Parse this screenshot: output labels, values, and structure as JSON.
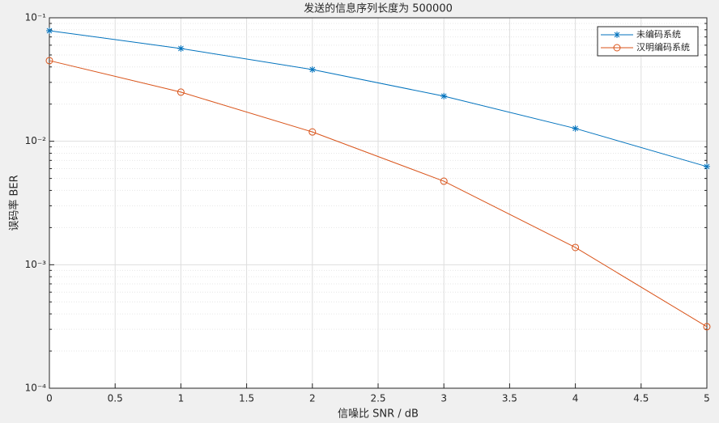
{
  "chart_data": {
    "type": "line",
    "title": "发送的信息序列长度为 500000",
    "x_label": "信噪比 SNR / dB",
    "y_label": "误码率 BER",
    "x": [
      0,
      1,
      2,
      3,
      4,
      5
    ],
    "series": [
      {
        "name": "未编码系统",
        "color": "#0072bd",
        "marker": "star",
        "values": [
          0.0786,
          0.0564,
          0.0381,
          0.0232,
          0.0127,
          0.00624
        ]
      },
      {
        "name": "汉明编码系统",
        "color": "#d95319",
        "marker": "circle",
        "values": [
          0.045,
          0.025,
          0.0119,
          0.00475,
          0.00138,
          0.000315
        ]
      }
    ],
    "xlim": [
      0,
      5
    ],
    "xticks": [
      0,
      0.5,
      1,
      1.5,
      2,
      2.5,
      3,
      3.5,
      4,
      4.5,
      5
    ],
    "ylim": [
      0.0001,
      0.1
    ],
    "yscale": "log",
    "yticks": [
      {
        "value": 0.0001,
        "label": "10⁻⁴"
      },
      {
        "value": 0.001,
        "label": "10⁻³"
      },
      {
        "value": 0.01,
        "label": "10⁻²"
      },
      {
        "value": 0.1,
        "label": "10⁻¹"
      }
    ],
    "grid": true,
    "minor_grid": true,
    "legend": "upper right"
  }
}
